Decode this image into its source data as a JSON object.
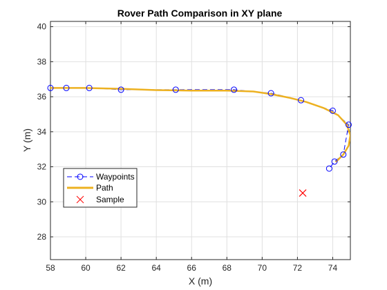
{
  "chart_data": {
    "type": "line",
    "title": "Rover Path Comparison in XY plane",
    "xlabel": "X (m)",
    "ylabel": "Y (m)",
    "xlim": [
      58,
      75
    ],
    "ylim": [
      26.7,
      40.3
    ],
    "xticks": [
      "58",
      "60",
      "62",
      "64",
      "66",
      "68",
      "70",
      "72",
      "74"
    ],
    "yticks": [
      "28",
      "30",
      "32",
      "34",
      "36",
      "38",
      "40"
    ],
    "grid": true,
    "legend_position": "lower-left",
    "colors": {
      "waypoints": "#0000ff",
      "path": "#edb120",
      "sample": "#ff0000",
      "grid": "#e0e0e0",
      "axis": "#262626"
    },
    "series": [
      {
        "name": "Waypoints",
        "style": "dashed line with circle markers",
        "x": [
          58.0,
          58.9,
          60.2,
          62.0,
          65.1,
          68.4,
          70.5,
          72.2,
          74.0,
          74.9,
          74.6,
          74.1,
          73.8
        ],
        "y": [
          36.5,
          36.5,
          36.5,
          36.4,
          36.4,
          36.4,
          36.2,
          35.8,
          35.2,
          34.4,
          32.7,
          32.3,
          31.9
        ]
      },
      {
        "name": "Path",
        "style": "solid thick line",
        "x": [
          58.0,
          60.0,
          62.0,
          64.0,
          66.0,
          68.0,
          69.5,
          70.5,
          71.5,
          72.5,
          73.5,
          74.3,
          74.8,
          75.0,
          74.9,
          74.6,
          74.2
        ],
        "y": [
          36.5,
          36.5,
          36.45,
          36.38,
          36.35,
          36.35,
          36.3,
          36.15,
          35.95,
          35.7,
          35.35,
          34.95,
          34.4,
          33.8,
          33.2,
          32.7,
          32.3
        ]
      },
      {
        "name": "Sample",
        "style": "x marker",
        "x": [
          72.3
        ],
        "y": [
          30.5
        ]
      }
    ]
  }
}
